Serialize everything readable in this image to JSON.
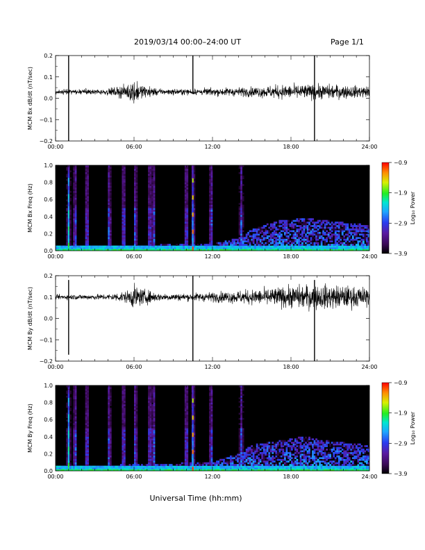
{
  "header": {
    "title": "2019/03/14  00:00–24:00 UT",
    "page": "Page 1/1"
  },
  "footer": {
    "xlabel": "Universal Time (hh:mm)"
  },
  "x_ticks": [
    "00:00",
    "06:00",
    "12:00",
    "18:00",
    "24:00"
  ],
  "colors": {
    "trace": "#000000",
    "spectrogram_background": "#000000",
    "colormap": [
      "#000000",
      "#3a0a55",
      "#5a1aa0",
      "#2a3cf0",
      "#1ea6ff",
      "#00e6d2",
      "#22ee22",
      "#d8f000",
      "#ff8c00",
      "#ff0000"
    ]
  },
  "chart_data": [
    {
      "type": "line",
      "panel": "Bx waveform",
      "ylabel": "MCM Bx dB/dt (nT/sec)",
      "xlim_hours": [
        0,
        24
      ],
      "ylim": [
        -0.2,
        0.2
      ],
      "y_ticks": [
        "0.2",
        "0.1",
        "0.0",
        "−0.1",
        "−0.2"
      ],
      "baseline": 0.03,
      "noise_envelope": {
        "x_hours": [
          0,
          4,
          5.5,
          6,
          6.5,
          8,
          10,
          12,
          15,
          17,
          19,
          21,
          24
        ],
        "amplitude": [
          0.01,
          0.012,
          0.03,
          0.05,
          0.03,
          0.012,
          0.012,
          0.015,
          0.02,
          0.028,
          0.03,
          0.03,
          0.022
        ]
      },
      "spikes": [
        {
          "time_hours": 1.0,
          "min": -0.2,
          "max": 0.2
        },
        {
          "time_hours": 10.5,
          "min": 0.02,
          "max": 0.2
        },
        {
          "time_hours": 19.8,
          "min": -0.2,
          "max": 0.2
        }
      ],
      "grid": false
    },
    {
      "type": "heatmap",
      "panel": "Bx spectrogram",
      "ylabel": "MCM Bx Freq (Hz)",
      "xlim_hours": [
        0,
        24
      ],
      "ylim": [
        0.0,
        1.0
      ],
      "y_ticks": [
        "1.0",
        "0.8",
        "0.6",
        "0.4",
        "0.2",
        "0.0"
      ],
      "colorbar": {
        "label": "Log₁₀ Power",
        "range": [
          -3.9,
          -0.9
        ],
        "ticks": [
          "−0.9",
          "−1.9",
          "−2.9",
          "−3.9"
        ]
      },
      "vertical_events_hours": [
        1.0,
        1.5,
        2.4,
        4.1,
        5.2,
        6.1,
        7.2,
        7.5,
        10.0,
        10.5,
        11.9,
        14.2
      ],
      "broadband_activity": {
        "x_hours": [
          0,
          12,
          14,
          15,
          17,
          19,
          21,
          24
        ],
        "upper_freq_hz": [
          0.05,
          0.08,
          0.15,
          0.25,
          0.35,
          0.38,
          0.35,
          0.3
        ]
      }
    },
    {
      "type": "line",
      "panel": "By waveform",
      "ylabel": "MCM By dB/dt (nT/sec)",
      "xlim_hours": [
        0,
        24
      ],
      "ylim": [
        -0.2,
        0.2
      ],
      "y_ticks": [
        "0.2",
        "0.1",
        "0.0",
        "−0.1",
        "−0.2"
      ],
      "baseline": 0.1,
      "noise_envelope": {
        "x_hours": [
          0,
          4,
          5.5,
          6,
          6.5,
          8,
          10,
          12,
          15,
          17,
          19,
          21,
          24
        ],
        "amplitude": [
          0.01,
          0.012,
          0.025,
          0.05,
          0.035,
          0.015,
          0.015,
          0.02,
          0.03,
          0.04,
          0.05,
          0.05,
          0.04
        ]
      },
      "spikes": [
        {
          "time_hours": 1.0,
          "min": -0.17,
          "max": 0.18
        },
        {
          "time_hours": 10.5,
          "min": -0.2,
          "max": 0.2
        },
        {
          "time_hours": 19.8,
          "min": -0.2,
          "max": 0.18
        }
      ],
      "grid": false
    },
    {
      "type": "heatmap",
      "panel": "By spectrogram",
      "ylabel": "MCM By Freq (Hz)",
      "xlim_hours": [
        0,
        24
      ],
      "ylim": [
        0.0,
        1.0
      ],
      "y_ticks": [
        "1.0",
        "0.8",
        "0.6",
        "0.4",
        "0.2",
        "0.0"
      ],
      "colorbar": {
        "label": "Log₁₀ Power",
        "range": [
          -3.9,
          -0.9
        ],
        "ticks": [
          "−0.9",
          "−1.9",
          "−2.9",
          "−3.9"
        ]
      },
      "vertical_events_hours": [
        1.0,
        1.5,
        2.4,
        4.1,
        5.2,
        6.1,
        7.2,
        7.5,
        10.0,
        10.5,
        11.9,
        14.2
      ],
      "broadband_activity": {
        "x_hours": [
          0,
          12,
          14,
          15,
          17,
          19,
          21,
          24
        ],
        "upper_freq_hz": [
          0.05,
          0.1,
          0.2,
          0.3,
          0.35,
          0.4,
          0.35,
          0.3
        ]
      }
    }
  ]
}
